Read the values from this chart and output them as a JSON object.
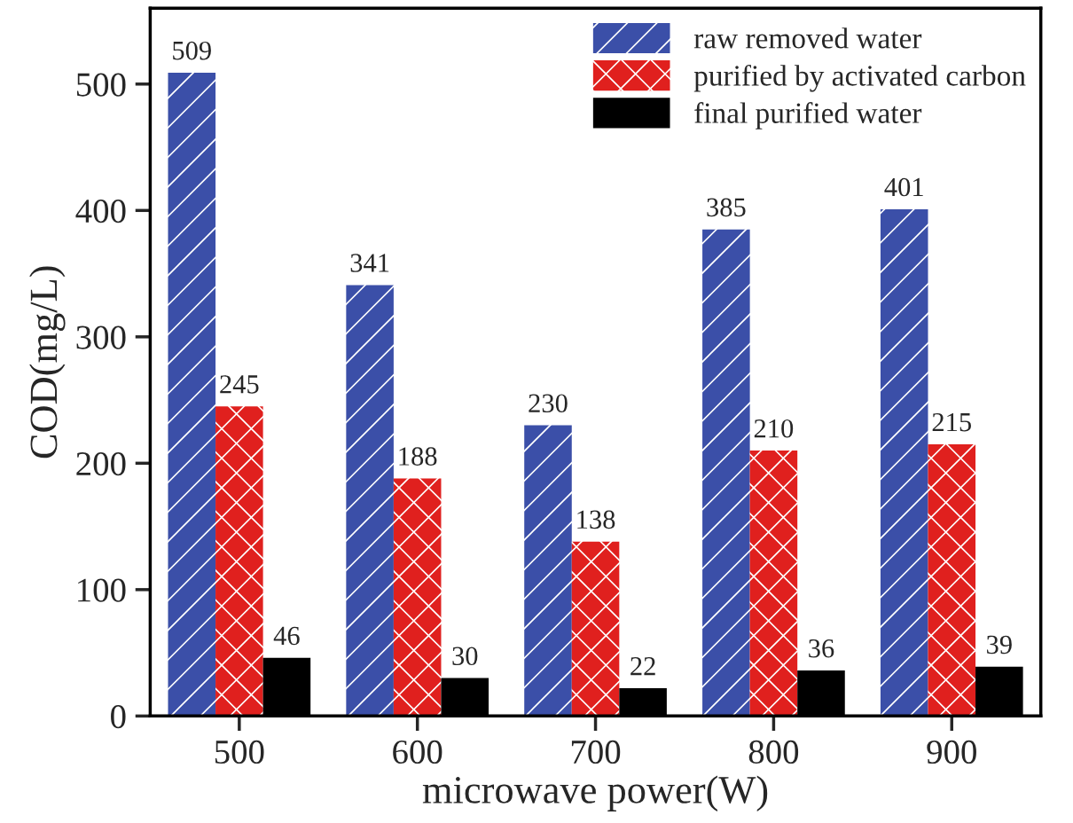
{
  "chart_data": {
    "type": "bar",
    "xlabel": "microwave power(W)",
    "ylabel": "COD(mg/L)",
    "categories": [
      "500",
      "600",
      "700",
      "800",
      "900"
    ],
    "series": [
      {
        "name": "raw removed water",
        "color": "#3b4fa8",
        "values": [
          509,
          341,
          230,
          385,
          401
        ]
      },
      {
        "name": "purified by activated carbon",
        "color": "#e0201e",
        "values": [
          245,
          188,
          138,
          210,
          215
        ]
      },
      {
        "name": "final purified water",
        "color": "#000000",
        "values": [
          46,
          30,
          22,
          36,
          39
        ]
      }
    ],
    "ylim": [
      0,
      560
    ],
    "yticks": [
      0,
      100,
      200,
      300,
      400,
      500
    ],
    "data_labels": true,
    "legend": "top right",
    "grid": false
  }
}
